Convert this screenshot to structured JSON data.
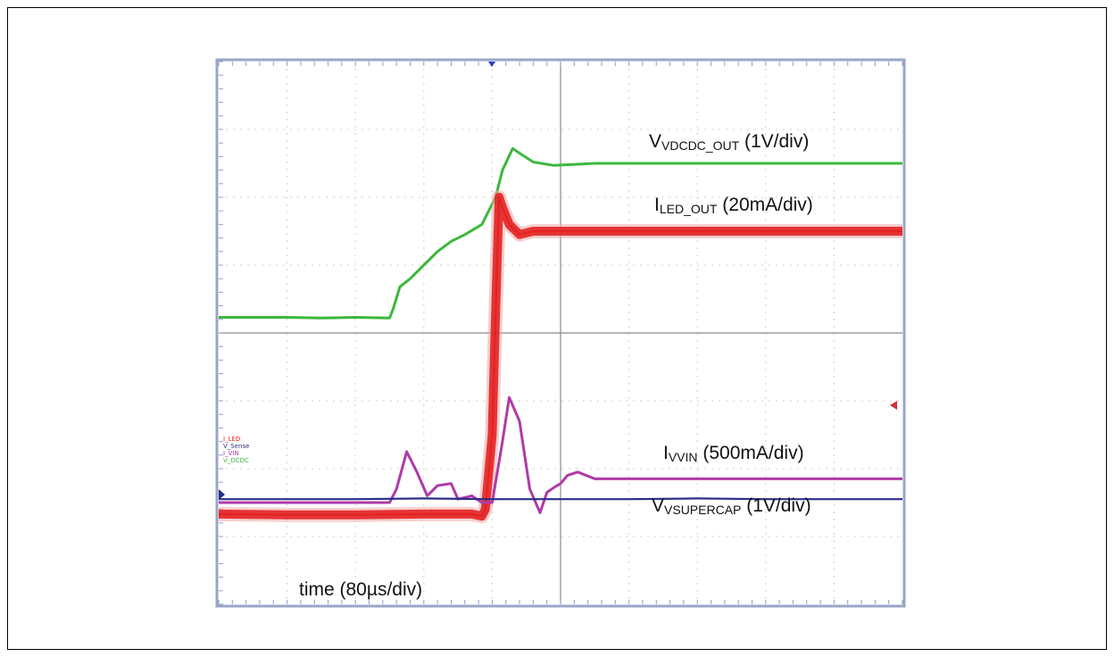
{
  "chart_data": {
    "type": "line",
    "title": "",
    "xlabel": "time (80µs/div)",
    "ylabel": "",
    "x_unit": "divisions",
    "y_unit": "divisions",
    "xlim": [
      0,
      10
    ],
    "ylim": [
      0,
      8
    ],
    "grid": true,
    "channel_legend": [
      "I_LED",
      "V_Sense",
      "I_VIN",
      "V_DCDC"
    ],
    "annotations": [
      {
        "id": "vdcdc",
        "main": "V",
        "sub": "VDCDC_OUT",
        "scale": "(1V/div)"
      },
      {
        "id": "iled",
        "main": "I",
        "sub": "LED_OUT",
        "scale": "(20mA/div)"
      },
      {
        "id": "ivin",
        "main": "I",
        "sub": "VVIN",
        "scale": "(500mA/div)"
      },
      {
        "id": "vsupercap",
        "main": "V",
        "sub": "VSUPERCAP",
        "scale": "(1V/div)"
      }
    ],
    "series": [
      {
        "name": "V_DCDC",
        "color": "#3cb83c",
        "x": [
          0,
          0.5,
          1,
          1.5,
          2,
          2.5,
          2.55,
          2.65,
          2.8,
          3.0,
          3.2,
          3.4,
          3.6,
          3.85,
          4.05,
          4.15,
          4.3,
          4.4,
          4.6,
          4.9,
          5.5,
          6,
          7,
          8,
          9,
          10
        ],
        "y": [
          4.23,
          4.23,
          4.23,
          4.22,
          4.23,
          4.22,
          4.35,
          4.68,
          4.8,
          5.0,
          5.2,
          5.35,
          5.45,
          5.6,
          6.0,
          6.4,
          6.72,
          6.65,
          6.52,
          6.47,
          6.5,
          6.5,
          6.5,
          6.5,
          6.5,
          6.5
        ]
      },
      {
        "name": "I_LED",
        "color": "#e32222",
        "x": [
          0,
          1,
          2,
          3,
          3.7,
          3.85,
          3.9,
          4.0,
          4.05,
          4.1,
          4.15,
          4.25,
          4.4,
          4.6,
          5,
          6,
          7,
          8,
          9,
          10
        ],
        "y": [
          1.33,
          1.32,
          1.32,
          1.33,
          1.33,
          1.3,
          1.4,
          2.5,
          4.3,
          6.0,
          5.85,
          5.6,
          5.45,
          5.5,
          5.5,
          5.5,
          5.5,
          5.5,
          5.5,
          5.5
        ]
      },
      {
        "name": "I_VIN",
        "color": "#b03aa8",
        "x": [
          0,
          1,
          2,
          2.5,
          2.6,
          2.75,
          2.9,
          3.05,
          3.2,
          3.4,
          3.5,
          3.7,
          3.85,
          4.0,
          4.15,
          4.25,
          4.4,
          4.55,
          4.7,
          4.8,
          4.9,
          5.0,
          5.1,
          5.25,
          5.5,
          6,
          7,
          8,
          9,
          10
        ],
        "y": [
          1.5,
          1.5,
          1.5,
          1.5,
          1.7,
          2.25,
          1.95,
          1.6,
          1.75,
          1.78,
          1.55,
          1.6,
          1.5,
          1.5,
          2.4,
          3.05,
          2.7,
          1.7,
          1.35,
          1.65,
          1.72,
          1.78,
          1.9,
          1.95,
          1.85,
          1.85,
          1.85,
          1.85,
          1.85,
          1.85
        ]
      },
      {
        "name": "V_Sense",
        "color": "#2a2e8a",
        "x": [
          0,
          1,
          2,
          3,
          4,
          5,
          6,
          7,
          8,
          9,
          10
        ],
        "y": [
          1.55,
          1.55,
          1.55,
          1.56,
          1.55,
          1.55,
          1.55,
          1.56,
          1.55,
          1.55,
          1.55
        ]
      }
    ]
  }
}
